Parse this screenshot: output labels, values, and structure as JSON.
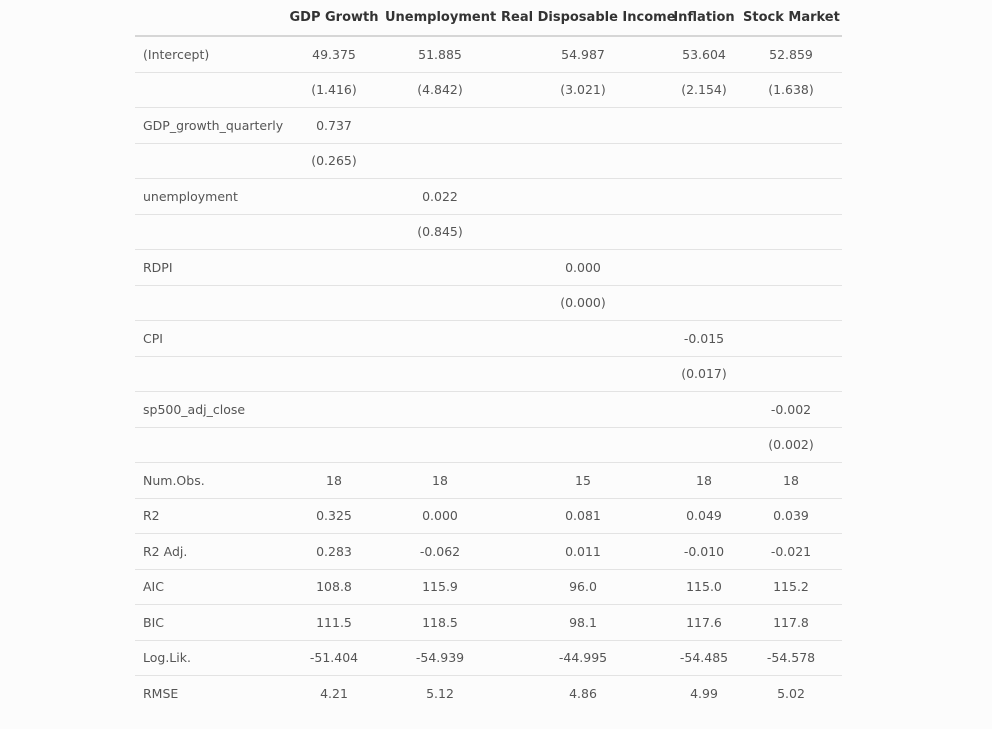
{
  "columns": [
    "",
    "GDP Growth",
    "Unemployment",
    "Real Disposable Income",
    "Inflation",
    "Stock Market"
  ],
  "rows": [
    [
      "(Intercept)",
      "49.375",
      "51.885",
      "54.987",
      "53.604",
      "52.859"
    ],
    [
      "",
      "(1.416)",
      "(4.842)",
      "(3.021)",
      "(2.154)",
      "(1.638)"
    ],
    [
      "GDP_growth_quarterly",
      "0.737",
      "",
      "",
      "",
      ""
    ],
    [
      "",
      "(0.265)",
      "",
      "",
      "",
      ""
    ],
    [
      "unemployment",
      "",
      "0.022",
      "",
      "",
      ""
    ],
    [
      "",
      "",
      "(0.845)",
      "",
      "",
      ""
    ],
    [
      "RDPI",
      "",
      "",
      "0.000",
      "",
      ""
    ],
    [
      "",
      "",
      "",
      "(0.000)",
      "",
      ""
    ],
    [
      "CPI",
      "",
      "",
      "",
      "-0.015",
      ""
    ],
    [
      "",
      "",
      "",
      "",
      "(0.017)",
      ""
    ],
    [
      "sp500_adj_close",
      "",
      "",
      "",
      "",
      "-0.002"
    ],
    [
      "",
      "",
      "",
      "",
      "",
      "(0.002)"
    ],
    [
      "Num.Obs.",
      "18",
      "18",
      "15",
      "18",
      "18"
    ],
    [
      "R2",
      "0.325",
      "0.000",
      "0.081",
      "0.049",
      "0.039"
    ],
    [
      "R2 Adj.",
      "0.283",
      "-0.062",
      "0.011",
      "-0.010",
      "-0.021"
    ],
    [
      "AIC",
      "108.8",
      "115.9",
      "96.0",
      "115.0",
      "115.2"
    ],
    [
      "BIC",
      "111.5",
      "118.5",
      "98.1",
      "117.6",
      "117.8"
    ],
    [
      "Log.Lik.",
      "-51.404",
      "-54.939",
      "-44.995",
      "-54.485",
      "-54.578"
    ],
    [
      "RMSE",
      "4.21",
      "5.12",
      "4.86",
      "4.99",
      "5.02"
    ]
  ]
}
